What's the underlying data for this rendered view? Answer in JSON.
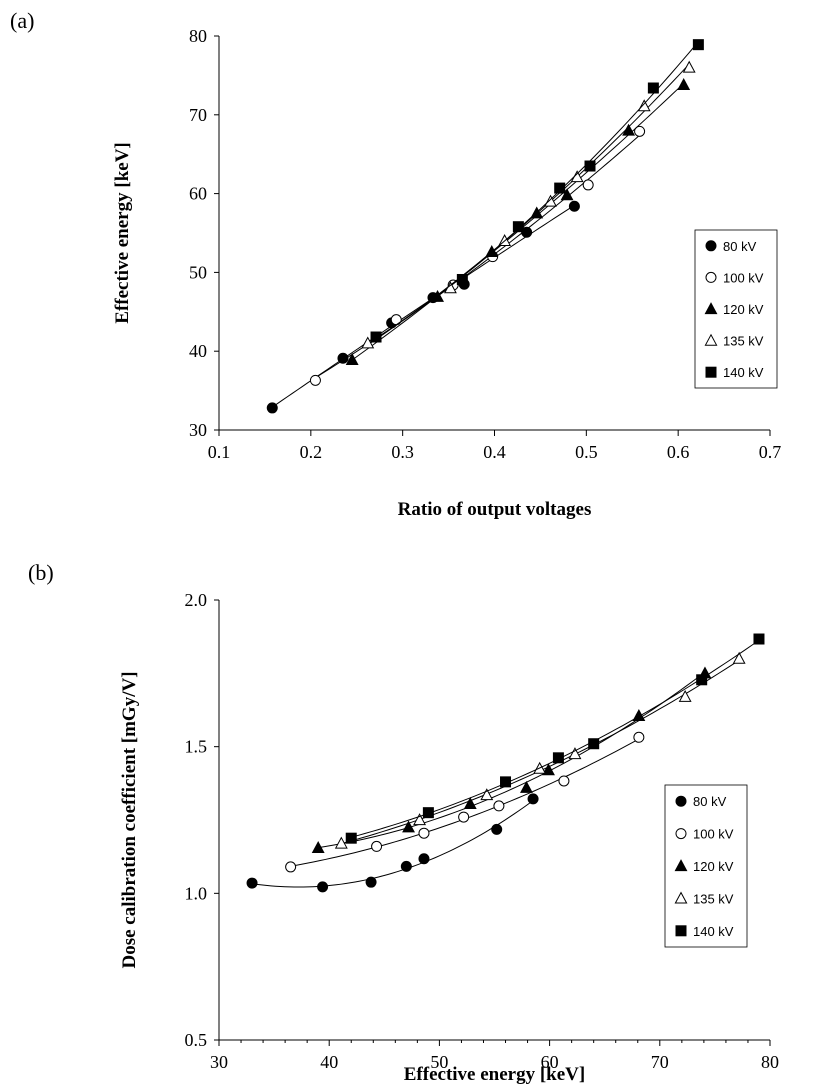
{
  "colors": {
    "marker": "#000000",
    "background": "#ffffff"
  },
  "chart_data": [
    {
      "panel_label": "(a)",
      "type": "scatter",
      "xlabel": "Ratio of output voltages",
      "ylabel": "Effective energy [keV]",
      "xlim": [
        0.1,
        0.7
      ],
      "ylim": [
        30,
        80
      ],
      "xticks": [
        0.1,
        0.2,
        0.3,
        0.4,
        0.5,
        0.6,
        0.7
      ],
      "yticks": [
        30,
        40,
        50,
        60,
        70,
        80
      ],
      "xtick_labels": [
        "0.1",
        "0.2",
        "0.3",
        "0.4",
        "0.5",
        "0.6",
        "0.7"
      ],
      "ytick_labels": [
        "30",
        "40",
        "50",
        "60",
        "70",
        "80"
      ],
      "grid": false,
      "legend_position": "right",
      "series": [
        {
          "name": "80 kV",
          "marker": "filled-circle",
          "x": [
            0.158,
            0.235,
            0.288,
            0.333,
            0.367,
            0.435,
            0.487
          ],
          "y": [
            32.8,
            39.1,
            43.6,
            46.8,
            48.5,
            55.1,
            58.4
          ]
        },
        {
          "name": "100 kV",
          "marker": "open-circle",
          "x": [
            0.205,
            0.293,
            0.355,
            0.398,
            0.502,
            0.558
          ],
          "y": [
            36.3,
            44.0,
            48.4,
            52.0,
            61.1,
            67.9
          ]
        },
        {
          "name": "120 kV",
          "marker": "filled-triangle",
          "x": [
            0.245,
            0.338,
            0.397,
            0.446,
            0.479,
            0.546,
            0.606
          ],
          "y": [
            38.9,
            46.9,
            52.6,
            57.5,
            59.8,
            68.0,
            73.8
          ]
        },
        {
          "name": "135 kV",
          "marker": "open-triangle",
          "x": [
            0.262,
            0.352,
            0.411,
            0.461,
            0.49,
            0.563,
            0.612
          ],
          "y": [
            41.0,
            48.0,
            54.0,
            59.0,
            62.1,
            71.1,
            76.0
          ]
        },
        {
          "name": "140 kV",
          "marker": "filled-square",
          "x": [
            0.271,
            0.365,
            0.426,
            0.471,
            0.504,
            0.573,
            0.622
          ],
          "y": [
            41.8,
            49.1,
            55.8,
            60.7,
            63.5,
            73.4,
            78.9
          ]
        }
      ]
    },
    {
      "panel_label": "(b)",
      "type": "scatter",
      "xlabel": "Effective energy [keV]",
      "ylabel": "Dose calibration coefficient [mGy/V]",
      "xlim": [
        30,
        80
      ],
      "ylim": [
        0.5,
        2.0
      ],
      "xticks": [
        30,
        40,
        50,
        60,
        70,
        80
      ],
      "yticks": [
        0.5,
        1.0,
        1.5,
        2.0
      ],
      "xtick_labels": [
        "30",
        "40",
        "50",
        "60",
        "70",
        "80"
      ],
      "ytick_labels": [
        "0.5",
        "1.0",
        "1.5",
        "2.0"
      ],
      "minor_xtick_step": 2,
      "grid": false,
      "legend_position": "right",
      "series": [
        {
          "name": "80 kV",
          "marker": "filled-circle",
          "x": [
            33.0,
            39.4,
            43.8,
            47.0,
            48.6,
            55.2,
            58.5
          ],
          "y": [
            1.035,
            1.022,
            1.038,
            1.092,
            1.118,
            1.218,
            1.322
          ]
        },
        {
          "name": "100 kV",
          "marker": "open-circle",
          "x": [
            36.5,
            44.3,
            48.6,
            52.2,
            55.4,
            61.3,
            68.1
          ],
          "y": [
            1.09,
            1.16,
            1.205,
            1.26,
            1.298,
            1.383,
            1.532
          ]
        },
        {
          "name": "120 kV",
          "marker": "filled-triangle",
          "x": [
            39.0,
            47.2,
            52.8,
            57.9,
            59.9,
            68.1,
            74.1
          ],
          "y": [
            1.155,
            1.225,
            1.305,
            1.36,
            1.42,
            1.605,
            1.75
          ]
        },
        {
          "name": "135 kV",
          "marker": "open-triangle",
          "x": [
            41.1,
            48.2,
            54.3,
            59.1,
            62.3,
            72.3,
            77.2
          ],
          "y": [
            1.17,
            1.25,
            1.335,
            1.425,
            1.475,
            1.67,
            1.8
          ]
        },
        {
          "name": "140 kV",
          "marker": "filled-square",
          "x": [
            42.0,
            49.0,
            56.0,
            60.8,
            64.0,
            73.8,
            79.0
          ],
          "y": [
            1.188,
            1.275,
            1.38,
            1.462,
            1.51,
            1.728,
            1.867
          ]
        }
      ]
    }
  ]
}
